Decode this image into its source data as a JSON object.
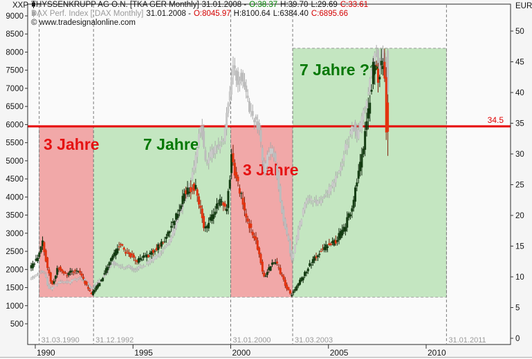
{
  "header": {
    "left_axis_unit": "XXP",
    "right_axis_unit": "EUR",
    "series_rows": [
      {
        "title": "THYSSENKRUPP AG O.N. [TKA GER  Monthly]",
        "date": "31.01.2008 -",
        "o": "O:38.37",
        "h": "H:39.70",
        "l": "L:29.69",
        "c": "C:33.61"
      },
      {
        "title": "DAX Perf. Index [.DAX  Monthly]",
        "date": "31.01.2008 -",
        "o": "O:8045.97",
        "h": "H:8100.64",
        "l": "L:6384.40",
        "c": "C:6895.66"
      }
    ],
    "copyright": "© www.tradesignalonline.com"
  },
  "colors": {
    "open_up": "#008200",
    "close_down": "#d40000",
    "tk_up": "#123b10",
    "tk_down": "#e2330f",
    "tk_up_wick": "#0c2309",
    "tk_down_wick": "#801a04",
    "dax_up": "#c9c9c9",
    "dax_down": "#bcbcbc",
    "dax_wick": "#a8a8a8",
    "zone_red": "#f1a8a8",
    "zone_green": "#c4e6c1",
    "hline": "#e60000",
    "annotation_red": "#e51212",
    "annotation_green": "#067806",
    "event_line": "#7a7a7a",
    "event_label": "#9a9a9a"
  },
  "chart_data": {
    "type": "candlestick",
    "description": "Two overlaid monthly candlestick series: THYSSENKRUPP AG (right EUR axis) and DAX Perf. Index (left XXP axis), 1990-2008, with red/green cycle zones",
    "axes": {
      "left": {
        "unit": "XXP",
        "ticks": [
          9000,
          8500,
          8000,
          7500,
          7000,
          6500,
          6000,
          5500,
          5000,
          4500,
          4000,
          3500,
          3000,
          2500,
          2000,
          1500,
          1000,
          500
        ],
        "range_top": 9000,
        "range_bottom": 500
      },
      "right": {
        "unit": "EUR",
        "ticks": [
          50,
          45,
          40,
          35,
          30,
          25,
          20,
          15,
          10,
          5,
          0
        ],
        "range_top": 50,
        "range_bottom": 0
      },
      "bottom": {
        "years": [
          "1990",
          "1995",
          "2000",
          "2005",
          "2010"
        ],
        "year_values": [
          1990,
          1995,
          2000,
          2005,
          2010
        ]
      }
    },
    "events": [
      {
        "date": "31.03.1990",
        "t": 1990.2
      },
      {
        "date": "31.12.1992",
        "t": 1992.98
      },
      {
        "date": "31.01.2000",
        "t": 2000.0
      },
      {
        "date": "31.03.2003",
        "t": 2003.17
      },
      {
        "date": "31.01.2011",
        "t": 2011.04
      }
    ],
    "zones": [
      {
        "label": "3 Jahre",
        "color": "red",
        "t0": 1990.2,
        "t1": 1992.98,
        "top_eur": 34.5,
        "bottom_eur": 6.7
      },
      {
        "label": "7 Jahre",
        "color": "green",
        "t0": 1992.98,
        "t1": 2000.0,
        "top_eur": 34.5,
        "bottom_eur": 6.7
      },
      {
        "label": "3 Jahre",
        "color": "red",
        "t0": 2000.0,
        "t1": 2003.17,
        "top_eur": 34.5,
        "bottom_eur": 6.7
      },
      {
        "label": "7 Jahre ??",
        "color": "green",
        "t0": 2003.17,
        "t1": 2011.04,
        "top_eur": 47.2,
        "bottom_eur": 6.7
      }
    ],
    "hline": {
      "value_eur": 34.5,
      "label": "34.5"
    },
    "annotations": [
      {
        "text": "3 Jahre",
        "color": "red",
        "x": 63,
        "y": 217
      },
      {
        "text": "7 Jahre",
        "color": "green",
        "x": 207,
        "y": 217
      },
      {
        "text": "3 Jahre",
        "color": "red",
        "x": 351,
        "y": 254
      },
      {
        "text": "7 Jahre ??",
        "color": "green",
        "x": 433,
        "y": 109
      }
    ],
    "series": [
      {
        "name": "DAX Perf. Index",
        "axis": "left",
        "volatility": 0.035,
        "jitter": 0.022,
        "last_ohlc": [
          8045.97,
          8100.64,
          6384.4,
          6895.66
        ],
        "anchors": [
          [
            1989.79,
            1750
          ],
          [
            1990.2,
            1880
          ],
          [
            1990.5,
            1960
          ],
          [
            1990.8,
            1440
          ],
          [
            1991.1,
            1560
          ],
          [
            1991.4,
            1680
          ],
          [
            1991.75,
            1620
          ],
          [
            1992.1,
            1720
          ],
          [
            1992.4,
            1800
          ],
          [
            1992.75,
            1560
          ],
          [
            1992.95,
            1480
          ],
          [
            1993.5,
            1750
          ],
          [
            1994.0,
            2200
          ],
          [
            1994.4,
            2050
          ],
          [
            1994.9,
            2070
          ],
          [
            1995.2,
            1990
          ],
          [
            1995.7,
            2130
          ],
          [
            1996.1,
            2280
          ],
          [
            1996.6,
            2520
          ],
          [
            1997.0,
            2850
          ],
          [
            1997.5,
            3650
          ],
          [
            1997.8,
            4150
          ],
          [
            1998.1,
            4600
          ],
          [
            1998.35,
            5200
          ],
          [
            1998.55,
            6100
          ],
          [
            1998.8,
            4950
          ],
          [
            1999.1,
            5250
          ],
          [
            1999.4,
            5350
          ],
          [
            1999.7,
            5600
          ],
          [
            1999.95,
            6600
          ],
          [
            2000.2,
            7600
          ],
          [
            2000.45,
            7250
          ],
          [
            2000.7,
            7350
          ],
          [
            2001.0,
            6500
          ],
          [
            2001.3,
            6100
          ],
          [
            2001.55,
            5900
          ],
          [
            2001.75,
            4650
          ],
          [
            2002.0,
            5250
          ],
          [
            2002.25,
            5350
          ],
          [
            2002.5,
            4450
          ],
          [
            2002.75,
            3450
          ],
          [
            2003.0,
            2900
          ],
          [
            2003.2,
            2250
          ],
          [
            2003.6,
            3250
          ],
          [
            2004.0,
            4000
          ],
          [
            2004.4,
            3850
          ],
          [
            2004.8,
            3950
          ],
          [
            2005.2,
            4250
          ],
          [
            2005.6,
            4650
          ],
          [
            2006.0,
            5450
          ],
          [
            2006.35,
            6000
          ],
          [
            2006.55,
            5650
          ],
          [
            2007.0,
            6600
          ],
          [
            2007.3,
            7450
          ],
          [
            2007.5,
            8050
          ],
          [
            2007.65,
            7550
          ],
          [
            2007.9,
            7950
          ],
          [
            2008.04,
            6895.66
          ]
        ]
      },
      {
        "name": "THYSSENKRUPP AG O.N.",
        "axis": "right",
        "volatility": 0.05,
        "jitter": 0.03,
        "last_ohlc": [
          38.37,
          39.7,
          29.69,
          33.61
        ],
        "anchors": [
          [
            1989.79,
            11.2
          ],
          [
            1990.2,
            13.2
          ],
          [
            1990.45,
            15.8
          ],
          [
            1990.7,
            11.5
          ],
          [
            1990.95,
            8.6
          ],
          [
            1991.25,
            11.6
          ],
          [
            1991.6,
            10.2
          ],
          [
            1991.9,
            10.8
          ],
          [
            1992.3,
            10.9
          ],
          [
            1992.6,
            9.2
          ],
          [
            1992.95,
            7.1
          ],
          [
            1993.4,
            9.2
          ],
          [
            1993.9,
            12.5
          ],
          [
            1994.4,
            15.2
          ],
          [
            1994.8,
            13.8
          ],
          [
            1995.3,
            12.6
          ],
          [
            1995.9,
            13.6
          ],
          [
            1996.5,
            15.2
          ],
          [
            1996.9,
            17.2
          ],
          [
            1997.4,
            21.0
          ],
          [
            1997.8,
            24.2
          ],
          [
            1998.3,
            24.6
          ],
          [
            1998.75,
            17.6
          ],
          [
            1999.1,
            19.5
          ],
          [
            1999.5,
            22.4
          ],
          [
            1999.85,
            21.0
          ],
          [
            2000.04,
            26.5
          ],
          [
            2000.12,
            30.8
          ],
          [
            2000.3,
            26.5
          ],
          [
            2000.6,
            23.5
          ],
          [
            2000.9,
            19.2
          ],
          [
            2001.3,
            16.2
          ],
          [
            2001.55,
            14.0
          ],
          [
            2001.75,
            9.6
          ],
          [
            2002.05,
            11.4
          ],
          [
            2002.35,
            12.6
          ],
          [
            2002.6,
            10.8
          ],
          [
            2002.9,
            8.6
          ],
          [
            2003.15,
            6.9
          ],
          [
            2003.5,
            8.6
          ],
          [
            2003.9,
            10.8
          ],
          [
            2004.4,
            13.2
          ],
          [
            2004.9,
            14.8
          ],
          [
            2005.4,
            15.6
          ],
          [
            2005.9,
            18.0
          ],
          [
            2006.3,
            21.5
          ],
          [
            2006.7,
            28.0
          ],
          [
            2007.0,
            34.0
          ],
          [
            2007.2,
            39.0
          ],
          [
            2007.45,
            45.8
          ],
          [
            2007.6,
            41.5
          ],
          [
            2007.8,
            44.8
          ],
          [
            2007.95,
            43.0
          ],
          [
            2008.04,
            33.61
          ]
        ]
      }
    ]
  }
}
